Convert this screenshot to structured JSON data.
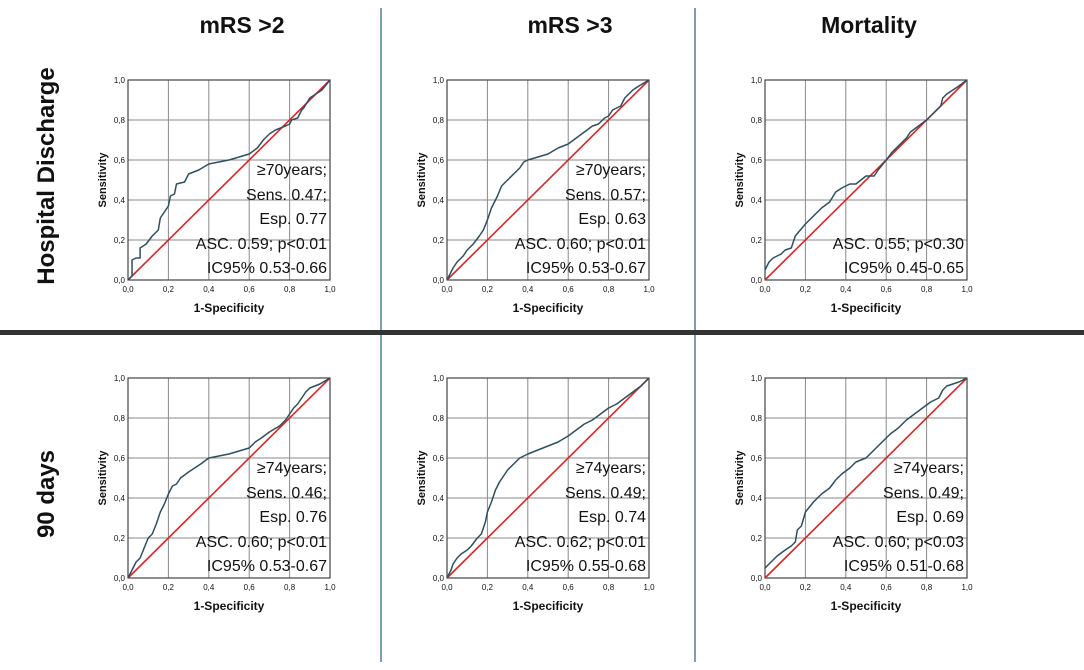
{
  "figure": {
    "column_titles": [
      "mRS >2",
      "mRS >3",
      "Mortality"
    ],
    "row_titles": [
      "Hospital Discharge",
      "90 days"
    ]
  },
  "colors": {
    "roc": "#2f4f5f",
    "reference": "#d62728",
    "grid": "#8a8a8a",
    "divider": "#7f9db0",
    "hdivider": "#333333"
  },
  "chart_data": [
    {
      "type": "line",
      "row": 0,
      "col": 0,
      "xlabel": "1-Specificity",
      "ylabel": "Sensitivity",
      "xlim": [
        0,
        1
      ],
      "ylim": [
        0,
        1
      ],
      "grid": true,
      "ticks": [
        "0,0",
        "0,2",
        "0,4",
        "0,6",
        "0,8",
        "1,0"
      ],
      "annotation": [
        "≥70years;",
        "Sens. 0.47;",
        "Esp. 0.77",
        "ASC. 0.59; p<0.01",
        "IC95%  0.53-0.66"
      ],
      "series": [
        {
          "name": "ROC",
          "x": [
            0,
            0.02,
            0.02,
            0.04,
            0.06,
            0.06,
            0.09,
            0.12,
            0.15,
            0.16,
            0.2,
            0.21,
            0.23,
            0.24,
            0.28,
            0.3,
            0.35,
            0.4,
            0.5,
            0.6,
            0.64,
            0.67,
            0.7,
            0.73,
            0.78,
            0.8,
            0.81,
            0.84,
            0.86,
            0.87,
            0.9,
            0.93,
            0.96,
            1
          ],
          "y": [
            0,
            0.02,
            0.1,
            0.11,
            0.11,
            0.16,
            0.18,
            0.22,
            0.25,
            0.31,
            0.37,
            0.42,
            0.43,
            0.48,
            0.49,
            0.53,
            0.55,
            0.58,
            0.6,
            0.63,
            0.66,
            0.7,
            0.73,
            0.75,
            0.77,
            0.78,
            0.8,
            0.81,
            0.85,
            0.86,
            0.91,
            0.93,
            0.95,
            1
          ]
        },
        {
          "name": "Reference",
          "x": [
            0,
            1
          ],
          "y": [
            0,
            1
          ]
        }
      ]
    },
    {
      "type": "line",
      "row": 0,
      "col": 1,
      "xlabel": "1-Specificity",
      "ylabel": "Sensitivity",
      "xlim": [
        0,
        1
      ],
      "ylim": [
        0,
        1
      ],
      "grid": true,
      "ticks": [
        "0,0",
        "0,2",
        "0,4",
        "0,6",
        "0,8",
        "1,0"
      ],
      "annotation": [
        "≥70years;",
        "Sens. 0.57;",
        "Esp. 0.63",
        "ASC. 0.60; p<0.01",
        "IC95%  0.53-0.67"
      ],
      "series": [
        {
          "name": "ROC",
          "x": [
            0,
            0.03,
            0.05,
            0.08,
            0.1,
            0.13,
            0.16,
            0.18,
            0.2,
            0.22,
            0.25,
            0.27,
            0.3,
            0.33,
            0.36,
            0.38,
            0.4,
            0.5,
            0.55,
            0.6,
            0.64,
            0.68,
            0.72,
            0.75,
            0.78,
            0.8,
            0.82,
            0.86,
            0.88,
            0.9,
            0.92,
            0.95,
            1
          ],
          "y": [
            0,
            0.06,
            0.09,
            0.12,
            0.15,
            0.18,
            0.22,
            0.25,
            0.3,
            0.36,
            0.42,
            0.47,
            0.5,
            0.53,
            0.56,
            0.59,
            0.6,
            0.63,
            0.66,
            0.68,
            0.71,
            0.74,
            0.77,
            0.78,
            0.81,
            0.82,
            0.85,
            0.87,
            0.91,
            0.93,
            0.95,
            0.97,
            1
          ]
        },
        {
          "name": "Reference",
          "x": [
            0,
            1
          ],
          "y": [
            0,
            1
          ]
        }
      ]
    },
    {
      "type": "line",
      "row": 0,
      "col": 2,
      "xlabel": "1-Specificity",
      "ylabel": "Sensitivity",
      "xlim": [
        0,
        1
      ],
      "ylim": [
        0,
        1
      ],
      "grid": true,
      "ticks": [
        "0,0",
        "0,2",
        "0,4",
        "0,6",
        "0,8",
        "1,0"
      ],
      "annotation": [
        "",
        "",
        "",
        "ASC. 0.55; p<0.30",
        "IC95%  0.45-0.65"
      ],
      "series": [
        {
          "name": "ROC",
          "x": [
            0,
            0.02,
            0.04,
            0.06,
            0.08,
            0.1,
            0.13,
            0.15,
            0.2,
            0.24,
            0.28,
            0.32,
            0.35,
            0.38,
            0.42,
            0.45,
            0.5,
            0.54,
            0.56,
            0.6,
            0.63,
            0.66,
            0.7,
            0.72,
            0.76,
            0.8,
            0.84,
            0.87,
            0.88,
            0.9,
            0.93,
            0.96,
            1
          ],
          "y": [
            0.05,
            0.09,
            0.11,
            0.12,
            0.13,
            0.15,
            0.16,
            0.22,
            0.28,
            0.32,
            0.36,
            0.39,
            0.44,
            0.46,
            0.48,
            0.48,
            0.52,
            0.52,
            0.55,
            0.6,
            0.64,
            0.67,
            0.71,
            0.74,
            0.77,
            0.8,
            0.84,
            0.87,
            0.91,
            0.93,
            0.95,
            0.97,
            1
          ]
        },
        {
          "name": "Reference",
          "x": [
            0,
            1
          ],
          "y": [
            0,
            1
          ]
        }
      ]
    },
    {
      "type": "line",
      "row": 1,
      "col": 0,
      "xlabel": "1-Specificity",
      "ylabel": "Sensitivity",
      "xlim": [
        0,
        1
      ],
      "ylim": [
        0,
        1
      ],
      "grid": true,
      "ticks": [
        "0,0",
        "0,2",
        "0,4",
        "0,6",
        "0,8",
        "1,0"
      ],
      "annotation": [
        "≥74years;",
        "Sens. 0.46;",
        "Esp. 0.76",
        "ASC. 0.60; p<0.01",
        "IC95%  0.53-0.67"
      ],
      "series": [
        {
          "name": "ROC",
          "x": [
            0,
            0.02,
            0.04,
            0.06,
            0.08,
            0.1,
            0.12,
            0.14,
            0.16,
            0.18,
            0.2,
            0.22,
            0.24,
            0.26,
            0.3,
            0.33,
            0.36,
            0.4,
            0.5,
            0.6,
            0.63,
            0.66,
            0.7,
            0.75,
            0.78,
            0.8,
            0.82,
            0.84,
            0.86,
            0.88,
            0.9,
            0.95,
            1
          ],
          "y": [
            0,
            0.04,
            0.08,
            0.1,
            0.15,
            0.2,
            0.22,
            0.27,
            0.33,
            0.37,
            0.42,
            0.46,
            0.47,
            0.5,
            0.53,
            0.55,
            0.57,
            0.6,
            0.62,
            0.65,
            0.68,
            0.7,
            0.73,
            0.76,
            0.79,
            0.82,
            0.85,
            0.87,
            0.9,
            0.93,
            0.95,
            0.97,
            1
          ]
        },
        {
          "name": "Reference",
          "x": [
            0,
            1
          ],
          "y": [
            0,
            1
          ]
        }
      ]
    },
    {
      "type": "line",
      "row": 1,
      "col": 1,
      "xlabel": "1-Specificity",
      "ylabel": "Sensitivity",
      "xlim": [
        0,
        1
      ],
      "ylim": [
        0,
        1
      ],
      "grid": true,
      "ticks": [
        "0,0",
        "0,2",
        "0,4",
        "0,6",
        "0,8",
        "1,0"
      ],
      "annotation": [
        "≥74years;",
        "Sens. 0.49;",
        "Esp. 0.74",
        "ASC. 0.62; p<0.01",
        "IC95%  0.55-0.68"
      ],
      "series": [
        {
          "name": "ROC",
          "x": [
            0,
            0.02,
            0.03,
            0.05,
            0.07,
            0.1,
            0.12,
            0.15,
            0.17,
            0.19,
            0.2,
            0.22,
            0.24,
            0.26,
            0.28,
            0.3,
            0.33,
            0.36,
            0.4,
            0.5,
            0.55,
            0.6,
            0.64,
            0.68,
            0.72,
            0.76,
            0.8,
            0.84,
            0.88,
            0.92,
            0.96,
            1
          ],
          "y": [
            0,
            0.04,
            0.07,
            0.1,
            0.12,
            0.14,
            0.16,
            0.2,
            0.22,
            0.28,
            0.33,
            0.38,
            0.44,
            0.48,
            0.51,
            0.54,
            0.57,
            0.6,
            0.62,
            0.66,
            0.68,
            0.71,
            0.74,
            0.77,
            0.79,
            0.82,
            0.85,
            0.87,
            0.9,
            0.93,
            0.96,
            1
          ]
        },
        {
          "name": "Reference",
          "x": [
            0,
            1
          ],
          "y": [
            0,
            1
          ]
        }
      ]
    },
    {
      "type": "line",
      "row": 1,
      "col": 2,
      "xlabel": "1-Specificity",
      "ylabel": "Sensitivity",
      "xlim": [
        0,
        1
      ],
      "ylim": [
        0,
        1
      ],
      "grid": true,
      "ticks": [
        "0,0",
        "0,2",
        "0,4",
        "0,6",
        "0,8",
        "1,0"
      ],
      "annotation": [
        "≥74years;",
        "Sens. 0.49;",
        "Esp. 0.69",
        "ASC. 0.60; p<0.03",
        "IC95%  0.51-0.68"
      ],
      "series": [
        {
          "name": "ROC",
          "x": [
            0,
            0.03,
            0.06,
            0.1,
            0.13,
            0.15,
            0.16,
            0.18,
            0.2,
            0.24,
            0.28,
            0.32,
            0.35,
            0.38,
            0.42,
            0.45,
            0.5,
            0.54,
            0.58,
            0.62,
            0.66,
            0.7,
            0.74,
            0.78,
            0.82,
            0.86,
            0.88,
            0.9,
            0.93,
            0.96,
            1
          ],
          "y": [
            0.05,
            0.08,
            0.11,
            0.14,
            0.16,
            0.18,
            0.24,
            0.26,
            0.33,
            0.38,
            0.42,
            0.45,
            0.49,
            0.52,
            0.55,
            0.58,
            0.6,
            0.64,
            0.68,
            0.72,
            0.75,
            0.79,
            0.82,
            0.85,
            0.88,
            0.9,
            0.94,
            0.96,
            0.97,
            0.98,
            1
          ]
        },
        {
          "name": "Reference",
          "x": [
            0,
            1
          ],
          "y": [
            0,
            1
          ]
        }
      ]
    }
  ]
}
